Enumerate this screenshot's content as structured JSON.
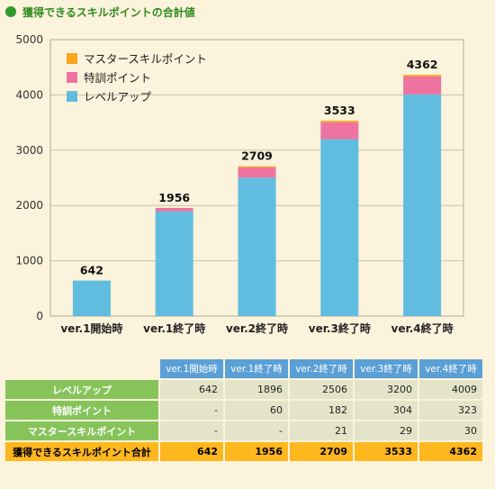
{
  "title": "獲得できるスキルポイントの合計値",
  "chart_data": {
    "type": "bar",
    "stacked": true,
    "categories": [
      "ver.1開始時",
      "ver.1終了時",
      "ver.2終了時",
      "ver.3終了時",
      "ver.4終了時"
    ],
    "series": [
      {
        "name": "レベルアップ",
        "color": "#61BDE0",
        "values": [
          642,
          1896,
          2506,
          3200,
          4009
        ]
      },
      {
        "name": "特訓ポイント",
        "color": "#EE73A0",
        "values": [
          0,
          60,
          182,
          304,
          323
        ]
      },
      {
        "name": "マスタースキルポイント",
        "color": "#FFA31A",
        "values": [
          0,
          0,
          21,
          29,
          30
        ]
      }
    ],
    "totals": [
      "642",
      "1956",
      "2709",
      "3533",
      "4362"
    ],
    "ylim": [
      0,
      5000
    ],
    "yticks": [
      "0",
      "1000",
      "2000",
      "3000",
      "4000",
      "5000"
    ],
    "grid": true,
    "legend_position": "top-left"
  },
  "table": {
    "columns": [
      "ver.1開始時",
      "ver.1終了時",
      "ver.2終了時",
      "ver.3終了時",
      "ver.4終了時"
    ],
    "rows": [
      {
        "label": "レベルアップ",
        "values": [
          "642",
          "1896",
          "2506",
          "3200",
          "4009"
        ]
      },
      {
        "label": "特訓ポイント",
        "values": [
          "-",
          "60",
          "182",
          "304",
          "323"
        ]
      },
      {
        "label": "マスタースキルポイント",
        "values": [
          "-",
          "-",
          "21",
          "29",
          "30"
        ]
      },
      {
        "label": "獲得できるスキルポイント合計",
        "values": [
          "642",
          "1956",
          "2709",
          "3533",
          "4362"
        ]
      }
    ]
  }
}
